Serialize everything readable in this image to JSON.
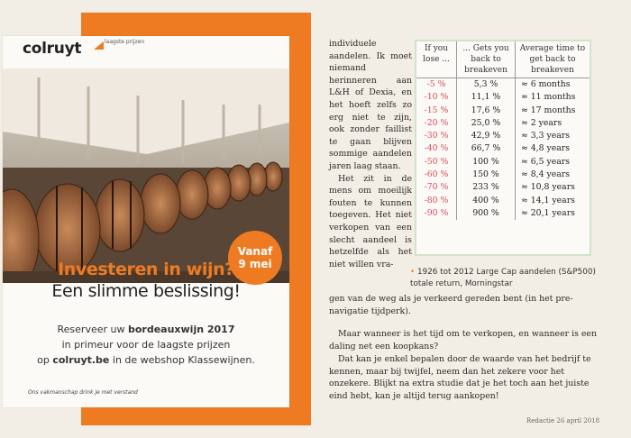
{
  "ad": {
    "logo": "colruyt",
    "logo_sub": "laagste prijzen",
    "badge_line1": "Vanaf",
    "badge_line2": "9 mei",
    "headline1": "Investeren in wijn?",
    "headline2": "Een slimme beslissing!",
    "line1_a": "Reserveer uw ",
    "line1_b": "bordeauxwijn 2017",
    "line2": "in primeur voor de laagste prijzen",
    "line3_a": "op ",
    "line3_b": "colruyt.be",
    "line3_c": " in de webshop Klassewijnen.",
    "footnote": "Ons vakmanschap drink je met verstand",
    "brand_color": "#ee7b22"
  },
  "article": {
    "col1": "individuele aandelen. Ik moet niemand herinneren aan L&H of Dexia, en het hoeft zelfs zo erg niet te zijn, ook zonder faillist te gaan blijven sommige aandelen jaren laag staan.",
    "col1b": "Het zit in de mens om moeilijk fouten te kunnen toegeven. Het niet verkopen van een slecht aandeel is hetzelfde als het niet willen vra-",
    "p_cont": "gen van de weg als je verkeerd gereden bent (in het pre-navigatie tijdperk).",
    "p2": "Maar wanneer is het tijd om te verkopen, en wanneer is een daling net een koopkans?",
    "p3": "Dat kan je enkel bepalen door de waarde van het bedrijf te kennen, maar bij twijfel, neem dan het zekere voor het onzekere. Blijkt na extra studie dat je het toch aan het juiste eind hebt, kan je altijd terug aankopen!",
    "redactie": "Redactie 26 april 2018"
  },
  "table": {
    "headers": [
      "If you lose ...",
      "... Gets you back to breakeven",
      "Average time to get back to breakeven"
    ],
    "rows": [
      [
        "-5 %",
        "5,3 %",
        "≈ 6 months"
      ],
      [
        "-10 %",
        "11,1 %",
        "≈ 11 months"
      ],
      [
        "-15 %",
        "17,6 %",
        "≈ 17 months"
      ],
      [
        "-20 %",
        "25,0 %",
        "≈ 2 years"
      ],
      [
        "-30 %",
        "42,9 %",
        "≈ 3,3 years"
      ],
      [
        "-40 %",
        "66,7 %",
        "≈ 4,8 years"
      ],
      [
        "-50 %",
        "100 %",
        "≈ 6,5 years"
      ],
      [
        "-60 %",
        "150 %",
        "≈ 8,4 years"
      ],
      [
        "-70 %",
        "233 %",
        "≈ 10,8 years"
      ],
      [
        "-80 %",
        "400 %",
        "≈ 14,1 years"
      ],
      [
        "-90 %",
        "900 %",
        "≈ 20,1 years"
      ]
    ],
    "footnote": "1926 tot 2012 Large Cap aandelen (S&P500) totale return, Morningstar"
  }
}
